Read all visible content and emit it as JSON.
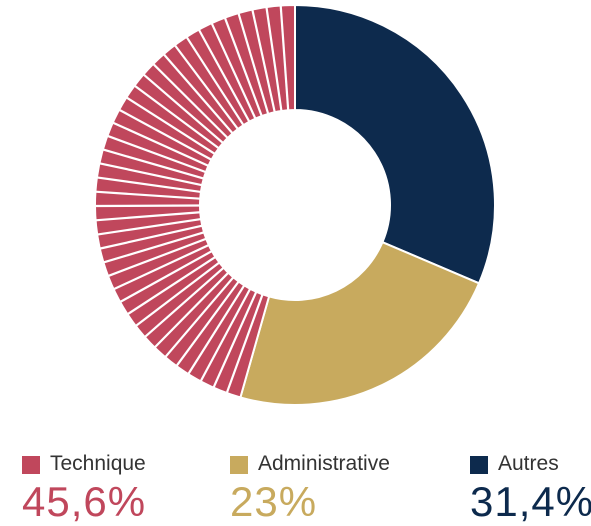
{
  "chart_data": {
    "type": "pie",
    "donut": true,
    "slices": [
      {
        "label": "Autres",
        "value": 31.4,
        "display": "31,4%",
        "color": "#0d2a4d",
        "pattern": "solid"
      },
      {
        "label": "Administrative",
        "value": 23,
        "display": "23%",
        "color": "#c8aa5e",
        "pattern": "solid"
      },
      {
        "label": "Technique",
        "value": 45.6,
        "display": "45,6%",
        "color": "#c0475c",
        "pattern": "radial-stripes"
      }
    ],
    "start_angle": "top",
    "direction": "clockwise",
    "legend_placement": "bottom"
  },
  "legend": [
    {
      "label": "Technique",
      "value": "45,6%",
      "color": "#c0475c"
    },
    {
      "label": "Administrative",
      "value": "23%",
      "color": "#c8aa5e"
    },
    {
      "label": "Autres",
      "value": "31,4%",
      "color": "#0d2a4d"
    }
  ]
}
